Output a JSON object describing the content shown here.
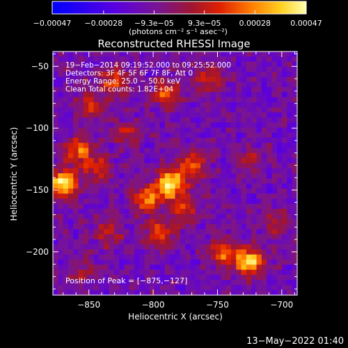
{
  "chart_data": {
    "type": "heatmap",
    "title": "Reconstructed RHESSI Image",
    "xlabel": "Heliocentric X (arcsec)",
    "ylabel": "Heliocentric Y (arcsec)",
    "xlim": [
      -878,
      -688
    ],
    "ylim": [
      -235,
      -38
    ],
    "xticks": [
      -850,
      -800,
      -750,
      -700
    ],
    "xtick_labels": [
      "−850",
      "−800",
      "−750",
      "−700"
    ],
    "yticks": [
      -50,
      -100,
      -150,
      -200
    ],
    "ytick_labels": [
      "−50",
      "−100",
      "−150",
      "−200"
    ],
    "colorbar": {
      "range": [
        -0.00047,
        0.00047
      ],
      "ticks": [
        -0.00047,
        -0.00028,
        -9.3e-05,
        9.3e-05,
        0.00028,
        0.00047
      ],
      "tick_labels": [
        "−0.00047",
        "−0.00028",
        "−9.3e−05",
        "9.3e−05",
        "0.00028",
        "0.00047"
      ],
      "unit_label": "(photons cm⁻² s⁻¹ asec⁻²)"
    },
    "annotations": [
      "19−Feb−2014 09:19:52.000 to 09:25:52.000",
      "Detectors: 3F 4F 5F 6F 7F 8F, Att 0",
      "Energy Range: 25.0 − 50.0 keV",
      "Clean      Total counts: 1.82E+04"
    ],
    "peak_label": "Position of Peak = [−875,−127]",
    "peak": [
      -875,
      -127
    ],
    "sources": [
      {
        "x": -870,
        "y": -145,
        "amp": 1.0
      },
      {
        "x": -858,
        "y": -118,
        "amp": 0.6
      },
      {
        "x": -843,
        "y": -132,
        "amp": 0.45
      },
      {
        "x": -787,
        "y": -145,
        "amp": 1.0
      },
      {
        "x": -805,
        "y": -158,
        "amp": 0.7
      },
      {
        "x": -770,
        "y": -130,
        "amp": 0.6
      },
      {
        "x": -795,
        "y": -185,
        "amp": 0.55
      },
      {
        "x": -775,
        "y": -165,
        "amp": 0.5
      },
      {
        "x": -725,
        "y": -208,
        "amp": 0.95
      },
      {
        "x": -745,
        "y": -200,
        "amp": 0.6
      },
      {
        "x": -830,
        "y": -62,
        "amp": 0.55
      },
      {
        "x": -848,
        "y": -80,
        "amp": 0.45
      },
      {
        "x": -790,
        "y": -72,
        "amp": 0.5
      },
      {
        "x": -758,
        "y": -60,
        "amp": 0.45
      },
      {
        "x": -835,
        "y": -185,
        "amp": 0.4
      },
      {
        "x": -820,
        "y": -105,
        "amp": 0.4
      },
      {
        "x": -725,
        "y": -125,
        "amp": 0.3
      },
      {
        "x": -705,
        "y": -175,
        "amp": 0.3
      },
      {
        "x": -855,
        "y": -215,
        "amp": 0.3
      }
    ]
  },
  "timestamp": "13−May−2022 01:40"
}
